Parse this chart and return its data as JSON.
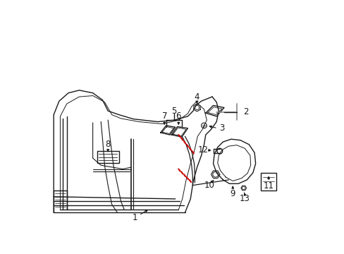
{
  "bg_color": "#ffffff",
  "lc": "#1a1a1a",
  "rc": "#cc0000",
  "fs": 8.5,
  "lw": 1.0
}
